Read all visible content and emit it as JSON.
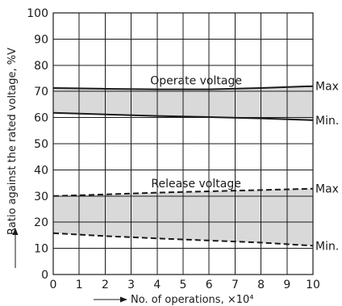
{
  "chart_data": {
    "type": "line",
    "title": "",
    "xlabel": "No. of operations, ×10⁴",
    "ylabel": "Ratio against the rated voltage, %V",
    "xlim": [
      0,
      10
    ],
    "ylim": [
      0,
      100
    ],
    "x_ticks": [
      "0",
      "1",
      "2",
      "3",
      "4",
      "5",
      "6",
      "7",
      "8",
      "9",
      "10"
    ],
    "y_ticks": [
      "0",
      "10",
      "20",
      "30",
      "40",
      "50",
      "60",
      "70",
      "80",
      "90",
      "100"
    ],
    "grid": true,
    "bands": [
      {
        "name": "Operate voltage",
        "style": "solid",
        "fill": "#d9d9d9",
        "max_label": "Max",
        "min_label": "Min.",
        "x": [
          0,
          2,
          4,
          6,
          8,
          10
        ],
        "max": [
          71.3,
          71.0,
          70.8,
          70.8,
          71.3,
          72.0
        ],
        "min": [
          61.8,
          61.2,
          60.6,
          60.2,
          59.7,
          59.0
        ]
      },
      {
        "name": "Release voltage",
        "style": "dashed",
        "fill": "#d9d9d9",
        "max_label": "Max",
        "min_label": "Min.",
        "x": [
          0,
          2,
          4,
          6,
          8,
          10
        ],
        "max": [
          30.0,
          30.6,
          31.3,
          31.8,
          32.3,
          32.8
        ],
        "min": [
          15.8,
          14.7,
          13.8,
          13.0,
          12.2,
          11.0
        ]
      }
    ],
    "colors": {
      "line": "#1a1a1a",
      "grid": "#1a1a1a",
      "band": "#d9d9d9"
    }
  }
}
